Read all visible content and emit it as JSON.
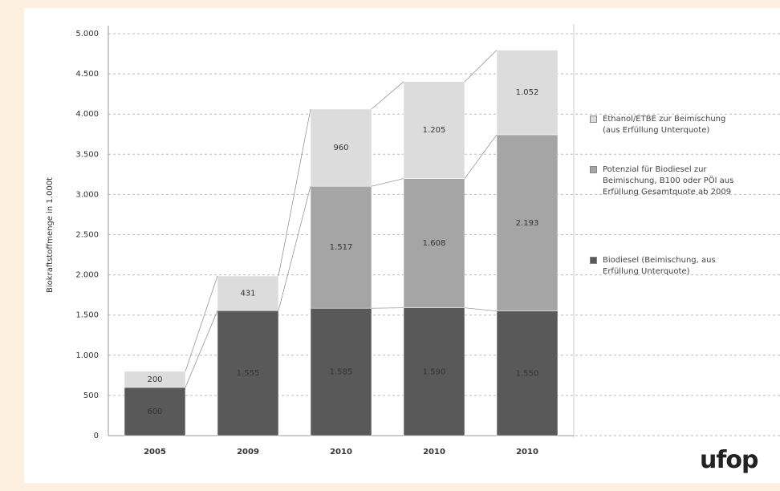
{
  "chart_data": {
    "type": "stacked_bar",
    "y_label": "Biokraftstoffmenge in 1.000t",
    "categories": [
      "2005",
      "2009",
      "2010",
      "2010",
      "2010"
    ],
    "series": [
      {
        "name": "Biodiesel (Beimischung, aus Erfüllung Unterquote)",
        "color": "#595959",
        "values": [
          600,
          1555,
          1585,
          1590,
          1550
        ],
        "value_labels": [
          "600",
          "1.555",
          "1.585",
          "1.590",
          "1.550"
        ]
      },
      {
        "name": "Potenzial für Biodiesel zur Beimischung, B100 oder PÖl aus Erfüllung Gesamtquote ab 2009",
        "color": "#a5a5a5",
        "values": [
          null,
          null,
          1517,
          1608,
          2193
        ],
        "value_labels": [
          null,
          null,
          "1.517",
          "1.608",
          "2.193"
        ]
      },
      {
        "name": "Ethanol/ETBE zur Beimischung (aus Erfüllung Unterquote)",
        "color": "#dcdcdc",
        "values": [
          200,
          431,
          960,
          1205,
          1052
        ],
        "value_labels": [
          "200",
          "431",
          "960",
          "1.205",
          "1.052"
        ]
      }
    ],
    "ylim": [
      0,
      5000
    ],
    "yticks": [
      0,
      500,
      {
        "value": 1000,
        "label": "1.000"
      },
      {
        "value": 1500,
        "label": "1.500"
      },
      {
        "value": 2000,
        "label": "2.000"
      },
      {
        "value": 2500,
        "label": "2.500"
      },
      {
        "value": 3000,
        "label": "3.000"
      },
      {
        "value": 3500,
        "label": "3.500"
      },
      {
        "value": 4000,
        "label": "4.000"
      },
      {
        "value": 4500,
        "label": "4.500"
      },
      {
        "value": 5000,
        "label": "5.000"
      }
    ],
    "grid": true
  },
  "logo": "ufop"
}
